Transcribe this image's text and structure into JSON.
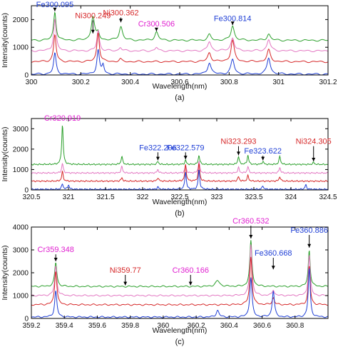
{
  "chart_data": [
    {
      "type": "line",
      "panel_label": "(a)",
      "xlabel": "Wavelength(nm)",
      "ylabel": "Intensity(counts)",
      "xlim": [
        300,
        301.2
      ],
      "ylim": [
        0,
        2500
      ],
      "xticks": [
        300,
        300.2,
        300.4,
        300.6,
        300.8,
        301,
        301.2
      ],
      "xtick_labels": [
        "300",
        "300.2",
        "300.4",
        "300.6",
        "300.8",
        "301",
        "301.2"
      ],
      "yticks": [
        0,
        1000,
        2000
      ],
      "ytick_labels": [
        "0",
        "1000",
        "2000"
      ],
      "grid": false,
      "series": [
        {
          "color": "#2ca02c",
          "baseline": 1250,
          "peaks": [
            [
              300.095,
              2280,
              0.006
            ],
            [
              300.249,
              2100,
              0.008
            ],
            [
              300.27,
              1500,
              0.006
            ],
            [
              300.362,
              1750,
              0.008
            ],
            [
              300.506,
              1550,
              0.008
            ],
            [
              300.72,
              1450,
              0.008
            ],
            [
              300.814,
              1780,
              0.008
            ],
            [
              300.96,
              1480,
              0.008
            ]
          ]
        },
        {
          "color": "#e377c2",
          "baseline": 870,
          "peaks": [
            [
              300.095,
              2030,
              0.006
            ],
            [
              300.27,
              1620,
              0.006
            ],
            [
              300.36,
              1000,
              0.006
            ],
            [
              300.506,
              1000,
              0.006
            ],
            [
              300.72,
              1200,
              0.008
            ],
            [
              300.814,
              1350,
              0.008
            ],
            [
              300.96,
              1280,
              0.008
            ]
          ]
        },
        {
          "color": "#d62728",
          "baseline": 480,
          "peaks": [
            [
              300.095,
              1450,
              0.006
            ],
            [
              300.27,
              1550,
              0.006
            ],
            [
              300.36,
              570,
              0.006
            ],
            [
              300.72,
              800,
              0.008
            ],
            [
              300.814,
              1250,
              0.008
            ],
            [
              300.96,
              900,
              0.008
            ]
          ]
        },
        {
          "color": "#1f3fd6",
          "baseline": 30,
          "peaks": [
            [
              300.095,
              780,
              0.006
            ],
            [
              300.27,
              900,
              0.006
            ],
            [
              300.29,
              350,
              0.005
            ],
            [
              300.72,
              450,
              0.008
            ],
            [
              300.814,
              560,
              0.008
            ],
            [
              300.96,
              620,
              0.008
            ]
          ]
        }
      ],
      "annotations": [
        {
          "text": "Fe300.095",
          "color": "#1f3fd6",
          "x": 300.095,
          "y": 2450,
          "arrow_to": 2300
        },
        {
          "text": "Ni300.249",
          "color": "#d62728",
          "x": 300.249,
          "y": 2050,
          "arrow_to": 1500
        },
        {
          "text": "Ni300.362",
          "color": "#d62728",
          "x": 300.362,
          "y": 2150,
          "arrow_to": 1900
        },
        {
          "text": "Cr300.506",
          "color": "#e020d0",
          "x": 300.506,
          "y": 1750,
          "arrow_to": 1580
        },
        {
          "text": "Fe300.814",
          "color": "#1f3fd6",
          "x": 300.814,
          "y": 1950,
          "arrow_to": 1800
        }
      ]
    },
    {
      "type": "line",
      "panel_label": "(b)",
      "xlabel": "Wavelength(nm)",
      "ylabel": "Intensity(counts)",
      "xlim": [
        320.5,
        324.5
      ],
      "ylim": [
        0,
        3500
      ],
      "xticks": [
        320.5,
        321,
        321.5,
        322,
        322.5,
        323,
        323.5,
        324,
        324.5
      ],
      "xtick_labels": [
        "320.5",
        "321",
        "321.5",
        "322",
        "322.5",
        "323",
        "323.5",
        "324",
        "324.5"
      ],
      "yticks": [
        0,
        1000,
        2000,
        3000
      ],
      "ytick_labels": [
        "0",
        "1000",
        "2000",
        "3000"
      ],
      "grid": false,
      "series": [
        {
          "color": "#2ca02c",
          "baseline": 1250,
          "peaks": [
            [
              320.919,
              3200,
              0.012
            ],
            [
              321.72,
              1650,
              0.012
            ],
            [
              322.206,
              1400,
              0.012
            ],
            [
              322.579,
              1450,
              0.012
            ],
            [
              322.76,
              1700,
              0.012
            ],
            [
              323.293,
              1650,
              0.012
            ],
            [
              323.42,
              1700,
              0.012
            ],
            [
              323.622,
              1400,
              0.012
            ],
            [
              323.85,
              1650,
              0.012
            ],
            [
              324.305,
              1350,
              0.012
            ]
          ]
        },
        {
          "color": "#e377c2",
          "baseline": 830,
          "peaks": [
            [
              320.919,
              1300,
              0.012
            ],
            [
              321.72,
              1150,
              0.012
            ],
            [
              322.206,
              1000,
              0.012
            ],
            [
              322.579,
              1200,
              0.012
            ],
            [
              322.76,
              1400,
              0.012
            ],
            [
              323.293,
              1100,
              0.012
            ],
            [
              323.42,
              1150,
              0.012
            ],
            [
              323.85,
              1100,
              0.012
            ]
          ]
        },
        {
          "color": "#d62728",
          "baseline": 430,
          "peaks": [
            [
              320.919,
              900,
              0.012
            ],
            [
              321.72,
              600,
              0.012
            ],
            [
              322.206,
              600,
              0.012
            ],
            [
              322.579,
              1250,
              0.012
            ],
            [
              322.76,
              1300,
              0.012
            ],
            [
              323.293,
              650,
              0.012
            ],
            [
              323.42,
              700,
              0.012
            ],
            [
              323.85,
              650,
              0.012
            ]
          ]
        },
        {
          "color": "#1f3fd6",
          "baseline": 30,
          "peaks": [
            [
              320.919,
              300,
              0.012
            ],
            [
              321.0,
              250,
              0.012
            ],
            [
              322.206,
              150,
              0.012
            ],
            [
              322.579,
              900,
              0.012
            ],
            [
              322.76,
              1000,
              0.012
            ],
            [
              323.622,
              200,
              0.012
            ],
            [
              324.2,
              250,
              0.012
            ]
          ]
        }
      ],
      "annotations": [
        {
          "text": "Cr320.919",
          "color": "#e020d0",
          "x": 320.919,
          "y": 3400,
          "arrow_to": 3250
        },
        {
          "text": "Fe322.206",
          "color": "#1f3fd6",
          "x": 322.206,
          "y": 1950,
          "arrow_to": 1450
        },
        {
          "text": "Fe322.579",
          "color": "#1f3fd6",
          "x": 322.579,
          "y": 1950,
          "arrow_to": 1500
        },
        {
          "text": "Ni323.293",
          "color": "#d62728",
          "x": 323.293,
          "y": 2250,
          "arrow_to": 1700
        },
        {
          "text": "Fe323.622",
          "color": "#1f3fd6",
          "x": 323.622,
          "y": 1780,
          "arrow_to": 1450
        },
        {
          "text": "Ni324.305",
          "color": "#d62728",
          "x": 324.305,
          "y": 2250,
          "arrow_to": 1400
        }
      ]
    },
    {
      "type": "line",
      "panel_label": "(c)",
      "xlabel": "Wavelength(nm)",
      "ylabel": "Intensity(counts)",
      "xlim": [
        359.2,
        361.0
      ],
      "ylim": [
        0,
        4000
      ],
      "xticks": [
        359.2,
        359.4,
        359.6,
        359.8,
        360,
        360.2,
        360.4,
        360.6,
        360.8
      ],
      "xtick_labels": [
        "359.2",
        "359.4",
        "359.6",
        "359.8",
        "360",
        "360.2",
        "360.4",
        "360.6",
        "360.8"
      ],
      "yticks": [
        0,
        1000,
        2000,
        3000,
        4000
      ],
      "ytick_labels": [
        "0",
        "1000",
        "2000",
        "3000",
        "4000"
      ],
      "grid": false,
      "series": [
        {
          "color": "#2ca02c",
          "baseline": 1400,
          "peaks": [
            [
              359.348,
              2450,
              0.008
            ],
            [
              360.33,
              1650,
              0.015
            ],
            [
              360.532,
              3400,
              0.008
            ],
            [
              360.886,
              3000,
              0.007
            ]
          ]
        },
        {
          "color": "#e377c2",
          "baseline": 1000,
          "peaks": [
            [
              359.348,
              2300,
              0.008
            ],
            [
              360.532,
              3250,
              0.008
            ],
            [
              360.668,
              1250,
              0.008
            ],
            [
              360.886,
              2800,
              0.007
            ]
          ]
        },
        {
          "color": "#d62728",
          "baseline": 600,
          "peaks": [
            [
              359.348,
              2100,
              0.008
            ],
            [
              360.532,
              2700,
              0.008
            ],
            [
              360.668,
              900,
              0.008
            ],
            [
              360.886,
              2300,
              0.007
            ]
          ]
        },
        {
          "color": "#1f3fd6",
          "baseline": 60,
          "peaks": [
            [
              359.348,
              1200,
              0.008
            ],
            [
              360.33,
              350,
              0.01
            ],
            [
              360.532,
              1800,
              0.008
            ],
            [
              360.668,
              1200,
              0.008
            ],
            [
              360.886,
              2200,
              0.007
            ]
          ]
        }
      ],
      "annotations": [
        {
          "text": "Cr359.348",
          "color": "#e020d0",
          "x": 359.348,
          "y": 2900,
          "arrow_to": 2500
        },
        {
          "text": "Ni359.77",
          "color": "#d62728",
          "x": 359.77,
          "y": 2000,
          "arrow_to": 1450
        },
        {
          "text": "Cr360.166",
          "color": "#e020d0",
          "x": 360.166,
          "y": 2000,
          "arrow_to": 1450
        },
        {
          "text": "Cr360.532",
          "color": "#e020d0",
          "x": 360.532,
          "y": 4150,
          "arrow_to": 3500
        },
        {
          "text": "Fe360.668",
          "color": "#1f3fd6",
          "x": 360.668,
          "y": 2750,
          "arrow_to": 2150
        },
        {
          "text": "Fe360.886",
          "color": "#1f3fd6",
          "x": 360.886,
          "y": 3750,
          "arrow_to": 3100
        }
      ]
    }
  ]
}
